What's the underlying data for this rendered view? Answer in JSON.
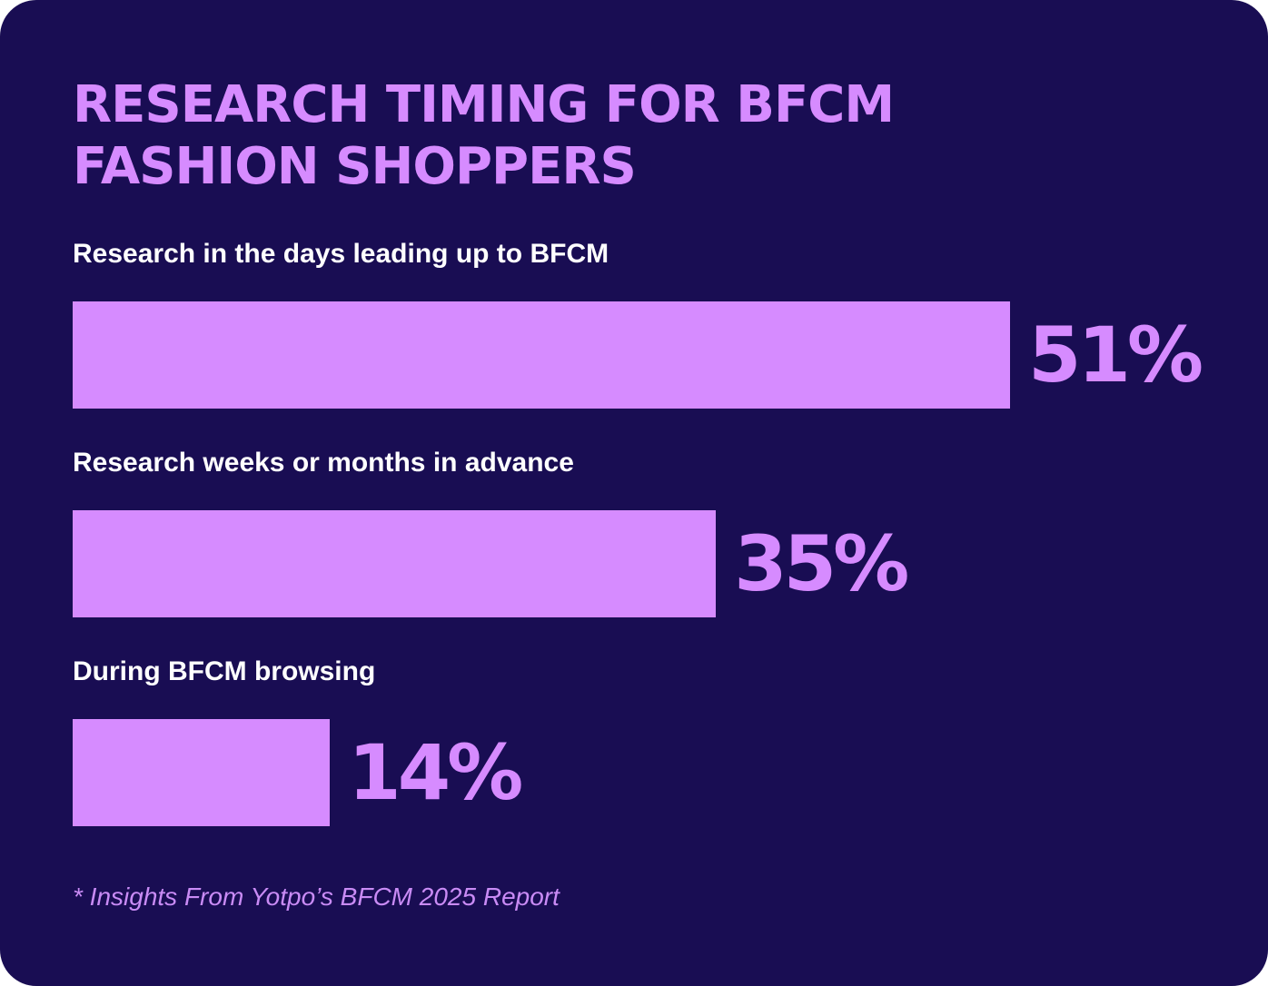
{
  "chart_data": {
    "type": "bar",
    "orientation": "horizontal",
    "title_lines": [
      "RESEARCH TIMING FOR BFCM",
      "FASHION SHOPPERS"
    ],
    "categories": [
      "Research in the days leading up to BFCM",
      "Research weeks or months in advance",
      "During BFCM browsing"
    ],
    "values": [
      51,
      35,
      14
    ],
    "value_labels": [
      "51%",
      "35%",
      "14%"
    ],
    "unit": "%",
    "grid": false,
    "legend": "none"
  },
  "footnote": "* Insights From Yotpo’s BFCM 2025 Report",
  "colors": {
    "background": "#190d53",
    "bar": "#d68bff",
    "title": "#d68bff",
    "label": "#ffffff",
    "footnote": "#c98bf5"
  }
}
